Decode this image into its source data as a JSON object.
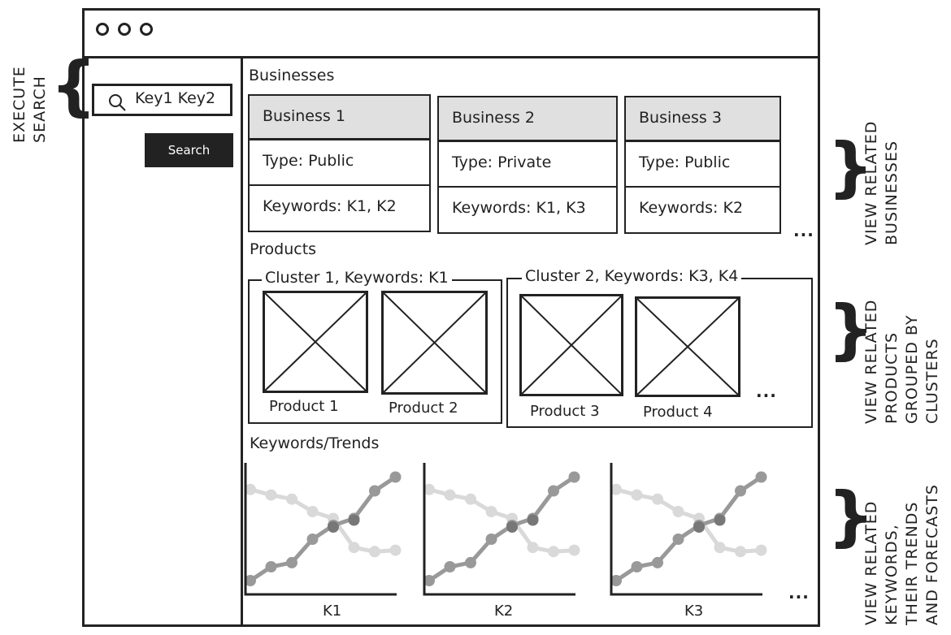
{
  "window": {
    "controls": [
      "circle-icon",
      "circle-icon",
      "circle-icon"
    ]
  },
  "search": {
    "query": "Key1 Key2",
    "button_label": "Search"
  },
  "annotations": {
    "execute_search": "EXECUTE\nSEARCH",
    "view_businesses": "VIEW RELATED\nBUSINESSES",
    "view_products": "VIEW RELATED\nPRODUCTS\nGROUPED BY\nCLUSTERS",
    "view_keywords": "VIEW RELATED\nKEYWORDS,\nTHEIR TRENDS\nAND FORECASTS"
  },
  "businesses": {
    "title": "Businesses",
    "more": "...",
    "items": [
      {
        "name": "Business 1",
        "type": "Type: Public",
        "keywords": "Keywords: K1, K2"
      },
      {
        "name": "Business 2",
        "type": "Type: Private",
        "keywords": "Keywords: K1, K3"
      },
      {
        "name": "Business 3",
        "type": "Type: Public",
        "keywords": "Keywords: K2"
      }
    ]
  },
  "products": {
    "title": "Products",
    "more": "...",
    "clusters": [
      {
        "label": "Cluster 1, Keywords: K1",
        "products": [
          "Product 1",
          "Product 2"
        ]
      },
      {
        "label": "Cluster 2, Keywords: K3, K4",
        "products": [
          "Product 3",
          "Product 4"
        ]
      }
    ]
  },
  "keywords": {
    "title": "Keywords/Trends",
    "more": "...",
    "colors": {
      "trend": "#999999",
      "forecast": "#d9d9d9",
      "overlap": "#777777"
    },
    "charts": [
      {
        "label": "K1"
      },
      {
        "label": "K2"
      },
      {
        "label": "K3"
      }
    ]
  },
  "chart_data": [
    {
      "type": "line",
      "xlabel": "K1",
      "series": [
        {
          "values": [
            1,
            2,
            2.3,
            4,
            5,
            5.5,
            7.5,
            8.5
          ]
        },
        {
          "values": [
            7.6,
            7.2,
            6.9,
            6,
            5.5,
            3.4,
            3.1,
            3.2
          ]
        }
      ]
    },
    {
      "type": "line",
      "xlabel": "K2",
      "series": [
        {
          "values": [
            1,
            2,
            2.3,
            4,
            5,
            5.5,
            7.5,
            8.5
          ]
        },
        {
          "values": [
            7.6,
            7.2,
            6.9,
            6,
            5.5,
            3.4,
            3.1,
            3.2
          ]
        }
      ]
    },
    {
      "type": "line",
      "xlabel": "K3",
      "series": [
        {
          "values": [
            1,
            2,
            2.3,
            4,
            5,
            5.5,
            7.5,
            8.5
          ]
        },
        {
          "values": [
            7.6,
            7.2,
            6.9,
            6,
            5.5,
            3.4,
            3.1,
            3.2
          ]
        }
      ]
    }
  ]
}
